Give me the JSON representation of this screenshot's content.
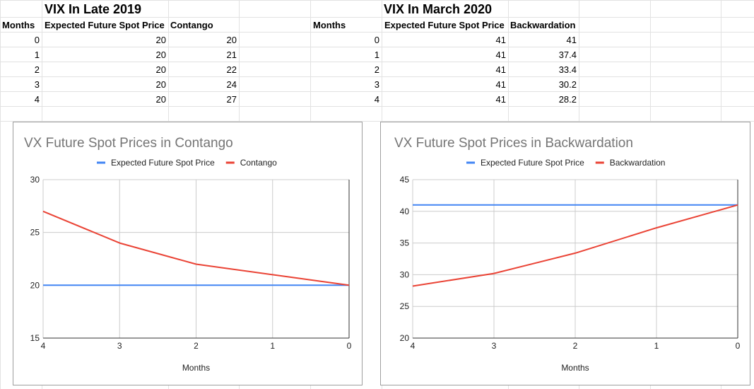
{
  "sheet": {
    "table1": {
      "title": "VIX In Late 2019",
      "headers": [
        "Months",
        "Expected Future Spot Price",
        "Contango"
      ],
      "rows": [
        [
          "0",
          "20",
          "20"
        ],
        [
          "1",
          "20",
          "21"
        ],
        [
          "2",
          "20",
          "22"
        ],
        [
          "3",
          "20",
          "24"
        ],
        [
          "4",
          "20",
          "27"
        ]
      ]
    },
    "table2": {
      "title": "VIX In March 2020",
      "headers": [
        "Months",
        "Expected Future Spot Price",
        "Backwardation"
      ],
      "rows": [
        [
          "0",
          "41",
          "41"
        ],
        [
          "1",
          "41",
          "37.4"
        ],
        [
          "2",
          "41",
          "33.4"
        ],
        [
          "3",
          "41",
          "30.2"
        ],
        [
          "4",
          "41",
          "28.2"
        ]
      ]
    }
  },
  "chart_data": [
    {
      "type": "line",
      "title": "VX Future Spot Prices in Contango",
      "xlabel": "Months",
      "ylabel": "",
      "x": [
        4,
        3,
        2,
        1,
        0
      ],
      "x_ticks": [
        "4",
        "3",
        "2",
        "1",
        "0"
      ],
      "ylim": [
        15,
        30
      ],
      "y_ticks": [
        "15",
        "20",
        "25",
        "30"
      ],
      "legend_position": "top",
      "grid": true,
      "series": [
        {
          "name": "Expected Future Spot Price",
          "color": "#4285f4",
          "values": [
            20,
            20,
            20,
            20,
            20
          ]
        },
        {
          "name": "Contango",
          "color": "#ea4335",
          "values": [
            27,
            24,
            22,
            21,
            20
          ]
        }
      ]
    },
    {
      "type": "line",
      "title": "VX Future Spot Prices in Backwardation",
      "xlabel": "Months",
      "ylabel": "",
      "x": [
        4,
        3,
        2,
        1,
        0
      ],
      "x_ticks": [
        "4",
        "3",
        "2",
        "1",
        "0"
      ],
      "ylim": [
        20,
        45
      ],
      "y_ticks": [
        "20",
        "25",
        "30",
        "35",
        "40",
        "45"
      ],
      "legend_position": "top",
      "grid": true,
      "series": [
        {
          "name": "Expected Future Spot Price",
          "color": "#4285f4",
          "values": [
            41,
            41,
            41,
            41,
            41
          ]
        },
        {
          "name": "Backwardation",
          "color": "#ea4335",
          "values": [
            28.2,
            30.2,
            33.4,
            37.4,
            41
          ]
        }
      ]
    }
  ]
}
